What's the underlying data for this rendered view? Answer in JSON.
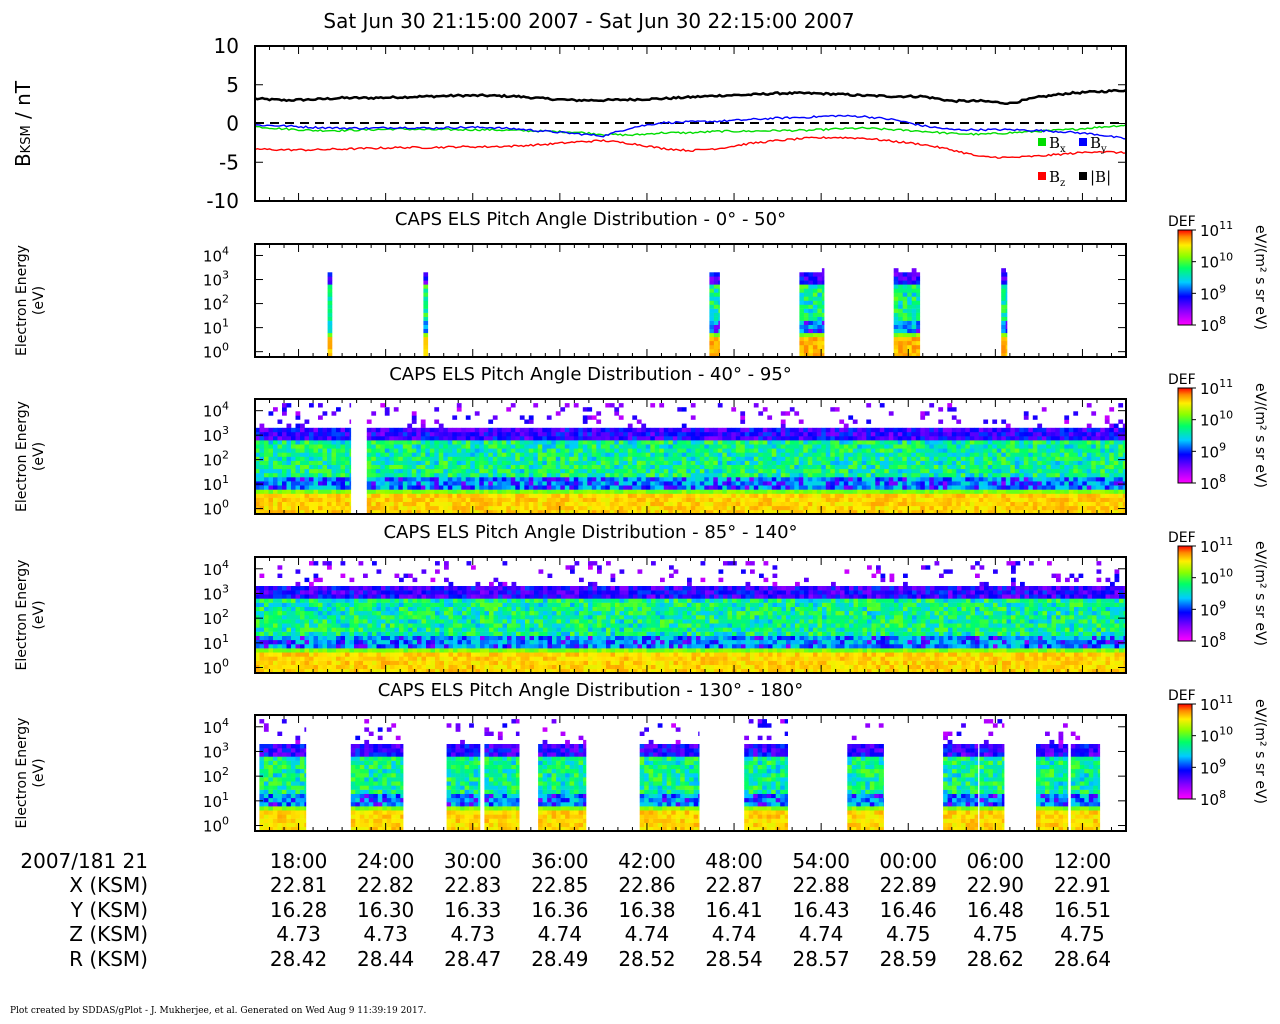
{
  "title": "Sat Jun 30 21:15:00 2007 - Sat Jun 30 22:15:00 2007",
  "footer": "Plot created by SDDAS/gPlot - J. Mukherjee, et al.  Generated on Wed Aug 9 11:39:19 2017.",
  "colors": {
    "bx": "#00dd00",
    "by": "#0000ff",
    "bz": "#ff0000",
    "bmag": "#000000",
    "zero_line": "#000000"
  },
  "mag_panel": {
    "ylabel": "BKSM / nT",
    "ylabel_main": "B",
    "ylabel_sub": "KSM",
    "ylabel_unit": " / nT",
    "yticks": [
      "10",
      "5",
      "0",
      "-5",
      "-10"
    ],
    "ylim": [
      -10,
      10
    ],
    "legend": [
      "Bx",
      "By",
      "Bz",
      "|B|"
    ]
  },
  "spectrograms": [
    {
      "title": "CAPS ELS Pitch Angle Distribution - 0° - 50°",
      "ylabel1": "Electron Energy",
      "ylabel2": "(eV)"
    },
    {
      "title": "CAPS ELS Pitch Angle Distribution - 40° - 95°",
      "ylabel1": "Electron Energy",
      "ylabel2": "(eV)"
    },
    {
      "title": "CAPS ELS Pitch Angle Distribution - 85° - 140°",
      "ylabel1": "Electron Energy",
      "ylabel2": "(eV)"
    },
    {
      "title": "CAPS ELS Pitch Angle Distribution - 130° - 180°",
      "ylabel1": "Electron Energy",
      "ylabel2": "(eV)"
    }
  ],
  "colorbar": {
    "label": "DEF",
    "unit": "eV/(m² s sr eV)",
    "ticks": [
      "10",
      "10",
      "10",
      "10"
    ],
    "exponents": [
      "11",
      "10",
      "9",
      "8"
    ]
  },
  "energy_ticks": {
    "base": "10",
    "exponents": [
      "4",
      "3",
      "2",
      "1",
      "0"
    ]
  },
  "time_axis": {
    "row_labels": [
      "2007/181 21",
      "X (KSM)",
      "Y (KSM)",
      "Z (KSM)",
      "R (KSM)"
    ],
    "columns": [
      {
        "time": "18:00",
        "x": "22.81",
        "y": "16.28",
        "z": "4.73",
        "r": "28.42"
      },
      {
        "time": "24:00",
        "x": "22.82",
        "y": "16.30",
        "z": "4.73",
        "r": "28.44"
      },
      {
        "time": "30:00",
        "x": "22.83",
        "y": "16.33",
        "z": "4.73",
        "r": "28.47"
      },
      {
        "time": "36:00",
        "x": "22.85",
        "y": "16.36",
        "z": "4.74",
        "r": "28.49"
      },
      {
        "time": "42:00",
        "x": "22.86",
        "y": "16.38",
        "z": "4.74",
        "r": "28.52"
      },
      {
        "time": "48:00",
        "x": "22.87",
        "y": "16.41",
        "z": "4.74",
        "r": "28.54"
      },
      {
        "time": "54:00",
        "x": "22.88",
        "y": "16.43",
        "z": "4.74",
        "r": "28.57"
      },
      {
        "time": "00:00",
        "x": "22.89",
        "y": "16.46",
        "z": "4.75",
        "r": "28.59"
      },
      {
        "time": "06:00",
        "x": "22.90",
        "y": "16.48",
        "z": "4.75",
        "r": "28.62"
      },
      {
        "time": "12:00",
        "x": "22.91",
        "y": "16.51",
        "z": "4.75",
        "r": "28.64"
      }
    ]
  },
  "chart_data": [
    {
      "type": "line",
      "x_unit": "minutes after 21:15",
      "xlim": [
        0,
        60
      ],
      "ylim": [
        -10,
        10
      ],
      "ylabel": "BKSM / nT",
      "zero_line": true,
      "series": [
        {
          "name": "|B|",
          "x": [
            0,
            2,
            4,
            6,
            8,
            10,
            12,
            14,
            16,
            18,
            20,
            22,
            24,
            26,
            28,
            30,
            32,
            34,
            36,
            38,
            40,
            42,
            44,
            46,
            48,
            50,
            52,
            54,
            56,
            58,
            60
          ],
          "y": [
            3.2,
            3.0,
            3.1,
            3.3,
            3.3,
            3.4,
            3.5,
            3.6,
            3.6,
            3.5,
            3.2,
            3.0,
            3.0,
            3.1,
            3.2,
            3.4,
            3.6,
            3.7,
            3.9,
            3.9,
            3.8,
            3.6,
            3.5,
            3.5,
            2.9,
            2.9,
            2.6,
            3.4,
            3.9,
            4.1,
            4.3
          ]
        },
        {
          "name": "Bx",
          "x": [
            0,
            2,
            4,
            6,
            8,
            10,
            12,
            14,
            16,
            18,
            20,
            22,
            24,
            26,
            28,
            30,
            32,
            34,
            36,
            38,
            40,
            42,
            44,
            46,
            48,
            50,
            52,
            54,
            56,
            58,
            60
          ],
          "y": [
            -0.4,
            -0.7,
            -0.9,
            -0.9,
            -0.8,
            -0.7,
            -0.8,
            -0.8,
            -0.8,
            -0.9,
            -1.0,
            -1.1,
            -1.4,
            -1.5,
            -1.2,
            -1.2,
            -1.0,
            -1.0,
            -0.9,
            -0.9,
            -0.7,
            -0.6,
            -0.8,
            -1.0,
            -1.3,
            -1.4,
            -1.2,
            -1.0,
            -0.8,
            -0.5,
            -0.2
          ]
        },
        {
          "name": "By",
          "x": [
            0,
            2,
            4,
            6,
            8,
            10,
            12,
            14,
            16,
            18,
            20,
            22,
            24,
            26,
            28,
            30,
            32,
            34,
            36,
            38,
            40,
            42,
            44,
            46,
            48,
            50,
            52,
            54,
            56,
            58,
            60
          ],
          "y": [
            -0.2,
            -0.3,
            -0.5,
            -0.6,
            -0.6,
            -0.5,
            -0.6,
            -0.5,
            -0.5,
            -0.7,
            -1.0,
            -1.3,
            -1.6,
            -0.5,
            0.1,
            0.2,
            0.3,
            0.5,
            0.7,
            0.8,
            1.0,
            0.9,
            0.5,
            -0.3,
            -0.8,
            -0.8,
            -0.8,
            -0.9,
            -1.1,
            -1.4,
            -2.0
          ]
        },
        {
          "name": "Bz",
          "x": [
            0,
            2,
            4,
            6,
            8,
            10,
            12,
            14,
            16,
            18,
            20,
            22,
            24,
            26,
            28,
            30,
            32,
            34,
            36,
            38,
            40,
            42,
            44,
            46,
            48,
            50,
            52,
            54,
            56,
            58,
            60
          ],
          "y": [
            -3.3,
            -3.4,
            -3.4,
            -3.3,
            -3.2,
            -3.1,
            -3.1,
            -3.0,
            -3.0,
            -2.9,
            -2.7,
            -2.4,
            -2.2,
            -2.6,
            -3.2,
            -3.5,
            -3.2,
            -2.6,
            -2.2,
            -1.9,
            -1.8,
            -1.9,
            -2.3,
            -2.7,
            -3.4,
            -4.3,
            -4.4,
            -4.2,
            -3.9,
            -3.6,
            -3.8
          ]
        }
      ]
    },
    {
      "type": "heatmap",
      "title": "CAPS ELS Pitch Angle Distribution - 0° - 50°",
      "ylabel": "Electron Energy (eV)",
      "y_scale": "log",
      "ylim": [
        0.6,
        30000
      ],
      "colorbar": {
        "label": "DEF",
        "unit": "eV/(m² s sr eV)",
        "range": [
          100000000.0,
          100000000000.0
        ]
      },
      "coverage_minutes": [
        [
          5.0,
          5.3
        ],
        [
          11.6,
          11.9
        ],
        [
          31.3,
          32.0
        ],
        [
          37.5,
          39.2
        ],
        [
          44.0,
          45.8
        ],
        [
          51.4,
          51.8
        ]
      ]
    },
    {
      "type": "heatmap",
      "title": "CAPS ELS Pitch Angle Distribution - 40° - 95°",
      "ylabel": "Electron Energy (eV)",
      "y_scale": "log",
      "ylim": [
        0.6,
        30000
      ],
      "colorbar": {
        "label": "DEF",
        "unit": "eV/(m² s sr eV)",
        "range": [
          100000000.0,
          100000000000.0
        ]
      },
      "coverage_minutes": [
        [
          0,
          6.6
        ],
        [
          7.7,
          60
        ]
      ]
    },
    {
      "type": "heatmap",
      "title": "CAPS ELS Pitch Angle Distribution - 85° - 140°",
      "ylabel": "Electron Energy (eV)",
      "y_scale": "log",
      "ylim": [
        0.6,
        30000
      ],
      "colorbar": {
        "label": "DEF",
        "unit": "eV/(m² s sr eV)",
        "range": [
          100000000.0,
          100000000000.0
        ]
      },
      "coverage_minutes": [
        [
          0,
          60
        ]
      ]
    },
    {
      "type": "heatmap",
      "title": "CAPS ELS Pitch Angle Distribution - 130° - 180°",
      "ylabel": "Electron Energy (eV)",
      "y_scale": "log",
      "ylim": [
        0.6,
        30000
      ],
      "colorbar": {
        "label": "DEF",
        "unit": "eV/(m² s sr eV)",
        "range": [
          100000000.0,
          100000000000.0
        ]
      },
      "coverage_minutes": [
        [
          0.3,
          3.5
        ],
        [
          6.6,
          10.2
        ],
        [
          13.2,
          15.5
        ],
        [
          15.8,
          18.2
        ],
        [
          19.5,
          22.8
        ],
        [
          26.5,
          30.6
        ],
        [
          33.7,
          36.7
        ],
        [
          40.8,
          43.3
        ],
        [
          47.4,
          49.8
        ],
        [
          49.9,
          51.6
        ],
        [
          53.8,
          56.0
        ],
        [
          56.2,
          58.2
        ]
      ]
    }
  ]
}
